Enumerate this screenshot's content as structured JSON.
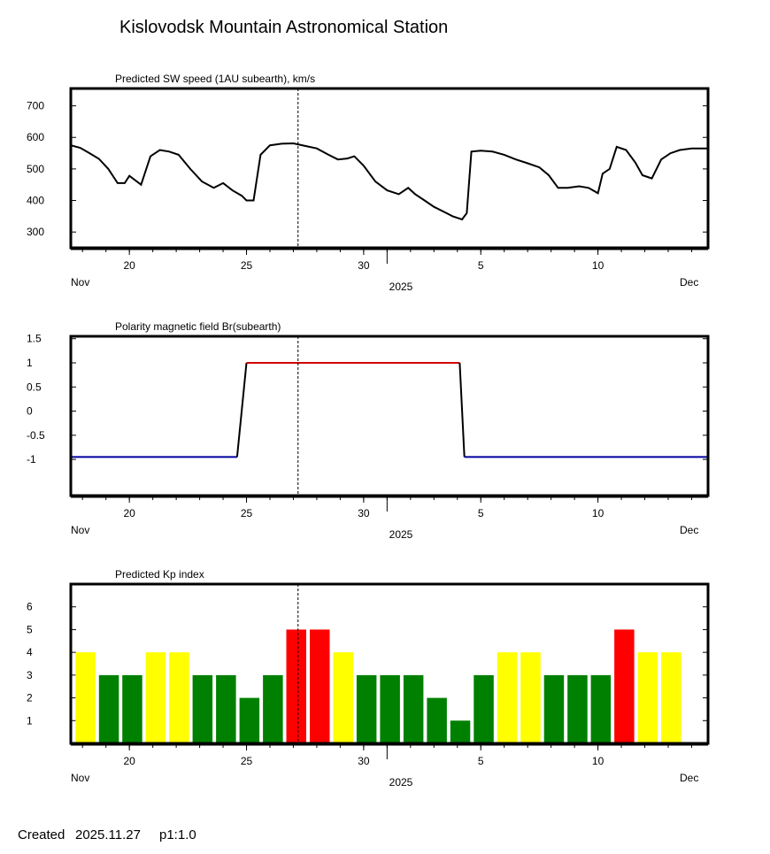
{
  "title": "Kislovodsk Mountain Astronomical Station",
  "footer": {
    "created_label": "Created",
    "created_date": "2025.11.27",
    "version": "p1:1.0"
  },
  "x_axis": {
    "start_day": 17.5,
    "end_day": 44.7,
    "ticks": [
      {
        "label": "20",
        "day": 20
      },
      {
        "label": "25",
        "day": 25
      },
      {
        "label": "30",
        "day": 30
      },
      {
        "label": "5",
        "day": 35
      },
      {
        "label": "10",
        "day": 40
      }
    ],
    "month_boundary_day": 31,
    "left_label": "Nov",
    "right_label": "Dec",
    "year_label": "2025",
    "current_day": 27.2
  },
  "chart_data": [
    {
      "type": "line",
      "title": "Predicted SW speed (1AU subearth), km/s",
      "ylim": [
        250,
        755
      ],
      "yticks": [
        300,
        400,
        500,
        600,
        700
      ],
      "series": [
        {
          "name": "SW speed",
          "color": "#000000",
          "x": [
            17.5,
            17.9,
            18.3,
            18.7,
            19.1,
            19.5,
            19.8,
            20.0,
            20.5,
            20.9,
            21.3,
            21.7,
            22.1,
            22.6,
            23.1,
            23.6,
            24.0,
            24.4,
            24.8,
            25.0,
            25.3,
            25.6,
            26.0,
            26.5,
            27.0,
            27.5,
            28.0,
            28.5,
            28.9,
            29.3,
            29.6,
            30.0,
            30.5,
            31.0,
            31.5,
            31.9,
            32.2,
            32.6,
            33.0,
            33.4,
            33.8,
            34.2,
            34.4,
            34.6,
            35.0,
            35.5,
            36.0,
            36.5,
            37.0,
            37.5,
            37.9,
            38.3,
            38.7,
            39.2,
            39.6,
            40.0,
            40.2,
            40.5,
            40.8,
            41.2,
            41.6,
            41.9,
            42.3,
            42.7,
            43.1,
            43.5,
            44.0,
            44.7
          ],
          "values": [
            575,
            567,
            550,
            532,
            500,
            455,
            455,
            478,
            450,
            540,
            560,
            555,
            545,
            500,
            460,
            440,
            455,
            432,
            415,
            400,
            400,
            545,
            575,
            580,
            581,
            573,
            565,
            545,
            530,
            533,
            540,
            510,
            460,
            432,
            420,
            440,
            420,
            400,
            380,
            365,
            350,
            340,
            360,
            555,
            558,
            555,
            545,
            530,
            518,
            505,
            480,
            440,
            440,
            445,
            440,
            423,
            485,
            500,
            570,
            560,
            520,
            480,
            470,
            530,
            550,
            560,
            565,
            565
          ]
        }
      ]
    },
    {
      "type": "line",
      "title": "Polarity magnetic field  Br(subearth)",
      "ylim": [
        -1.75,
        1.55
      ],
      "yticks": [
        1.5,
        1,
        0.5,
        0,
        -0.5,
        -1
      ],
      "ytick_labels": [
        "1.5",
        "1",
        "0.5",
        "0",
        "-0.5",
        "-1"
      ],
      "series": [
        {
          "name": "negative polarity",
          "color": "#0000a0",
          "x": [
            17.5,
            24.6
          ],
          "values": [
            -0.95,
            -0.95
          ]
        },
        {
          "name": "transition",
          "color": "#000000",
          "x": [
            24.6,
            25.0
          ],
          "values": [
            -0.95,
            1
          ]
        },
        {
          "name": "positive polarity",
          "color": "#d00000",
          "x": [
            25.0,
            34.1
          ],
          "values": [
            1,
            1
          ]
        },
        {
          "name": "transition",
          "color": "#000000",
          "x": [
            34.1,
            34.3
          ],
          "values": [
            1,
            -0.95
          ]
        },
        {
          "name": "negative polarity",
          "color": "#0000a0",
          "x": [
            34.3,
            44.7
          ],
          "values": [
            -0.95,
            -0.95
          ]
        }
      ]
    },
    {
      "type": "bar",
      "title": "Predicted Kp index",
      "ylim": [
        0,
        7
      ],
      "yticks": [
        1,
        2,
        3,
        4,
        5,
        6
      ],
      "bar_start_day": 17.7,
      "bar_step_day": 1.0,
      "bar_width_day": 0.85,
      "values": [
        4,
        3,
        3,
        4,
        4,
        3,
        3,
        2,
        3,
        5,
        5,
        4,
        3,
        3,
        3,
        2,
        1,
        3,
        4,
        4,
        3,
        3,
        3,
        5,
        4,
        4
      ],
      "colors": {
        "quiet": "#008000",
        "unsettled": "#ffff00",
        "storm": "#ff0000"
      }
    }
  ]
}
